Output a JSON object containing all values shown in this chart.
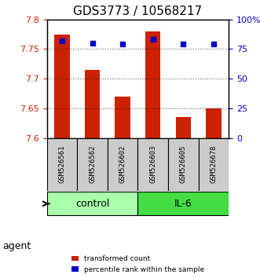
{
  "title": "GDS3773 / 10568217",
  "samples": [
    "GSM526561",
    "GSM526562",
    "GSM526602",
    "GSM526603",
    "GSM526605",
    "GSM526678"
  ],
  "bar_values": [
    7.775,
    7.715,
    7.67,
    7.78,
    7.635,
    7.65
  ],
  "percentile_values": [
    82,
    80,
    79,
    83,
    79,
    79
  ],
  "ymin": 7.6,
  "ymax": 7.8,
  "y_ticks": [
    7.6,
    7.65,
    7.7,
    7.75,
    7.8
  ],
  "y_tick_labels": [
    "7.6",
    "7.65",
    "7.7",
    "7.75",
    "7.8"
  ],
  "right_y_ticks": [
    0,
    25,
    50,
    75,
    100
  ],
  "right_y_labels": [
    "0",
    "25",
    "50",
    "75",
    "100%"
  ],
  "bar_color": "#cc2200",
  "dot_color": "#0000cc",
  "groups": [
    {
      "label": "control",
      "indices": [
        0,
        1,
        2
      ],
      "color": "#aaffaa"
    },
    {
      "label": "IL-6",
      "indices": [
        3,
        4,
        5
      ],
      "color": "#44dd44"
    }
  ],
  "agent_label": "agent",
  "legend_items": [
    {
      "label": "transformed count",
      "color": "#cc2200"
    },
    {
      "label": "percentile rank within the sample",
      "color": "#0000cc"
    }
  ],
  "grid_color": "#000000",
  "grid_alpha": 0.3,
  "sample_box_color": "#cccccc"
}
